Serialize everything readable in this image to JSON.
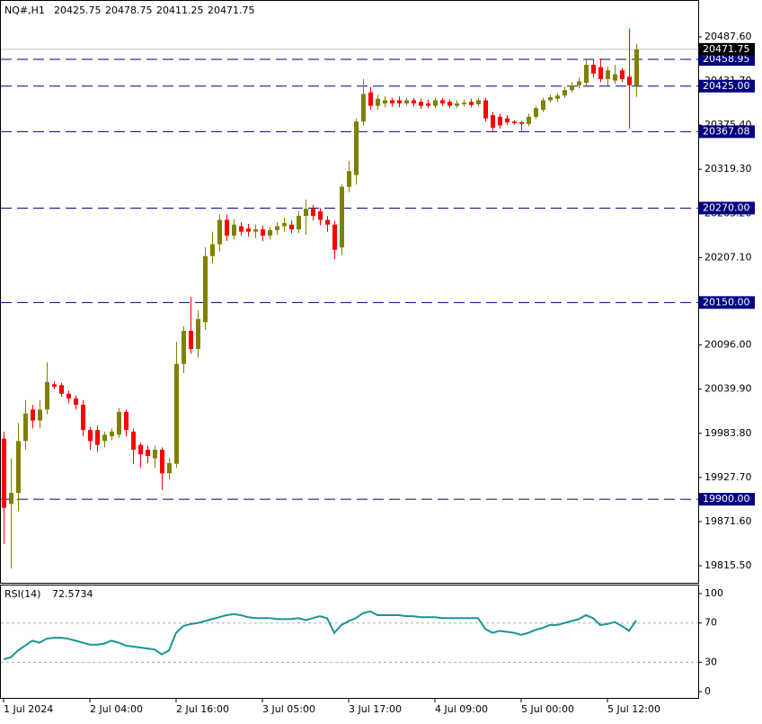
{
  "chart_data": [
    {
      "type": "candlestick",
      "title": "NQ#,H1",
      "categories": [
        "1 Jul 2024",
        null,
        null,
        null,
        null,
        null,
        null,
        null,
        null,
        null,
        null,
        null,
        "2 Jul 04:00",
        null,
        null,
        null,
        null,
        null,
        null,
        null,
        null,
        null,
        null,
        null,
        "2 Jul 16:00",
        null,
        null,
        null,
        null,
        null,
        null,
        null,
        null,
        null,
        null,
        null,
        "3 Jul 05:00",
        null,
        null,
        null,
        null,
        null,
        null,
        null,
        null,
        null,
        null,
        null,
        "3 Jul 17:00",
        null,
        null,
        null,
        null,
        null,
        null,
        null,
        null,
        null,
        null,
        null,
        "4 Jul 09:00",
        null,
        null,
        null,
        null,
        null,
        null,
        null,
        null,
        null,
        null,
        null,
        "5 Jul 00:00",
        null,
        null,
        null,
        null,
        null,
        null,
        null,
        null,
        null,
        null,
        null,
        "5 Jul 12:00",
        null,
        null,
        null,
        null
      ],
      "open": [
        19977,
        19894,
        19908,
        19974,
        20014,
        20000,
        20014,
        20046,
        20045,
        20034,
        20028,
        20020,
        19988,
        19988,
        19974,
        19980,
        19982,
        20011,
        19986,
        19969,
        19963,
        19952,
        19963,
        19933,
        19945,
        20072,
        20114,
        20091,
        20125,
        20209,
        20224,
        20255,
        20235,
        20247,
        20244,
        20240,
        20243,
        20235,
        20242,
        20247,
        20249,
        20243,
        20260,
        20269,
        20266,
        20255,
        20249,
        20220,
        20297,
        20312,
        20380,
        20417,
        20400,
        20403,
        20407,
        20407,
        20403,
        20407,
        20405,
        20403,
        20400,
        20407,
        20405,
        20400,
        20402,
        20405,
        20402,
        20407,
        20388,
        20386,
        20384,
        20380,
        20379,
        20377,
        20386,
        20395,
        20407,
        20409,
        20413,
        20420,
        20426,
        20429,
        20452,
        20449,
        20434,
        20432,
        20445,
        20437,
        20425.75
      ],
      "high": [
        19986,
        19952,
        19997,
        20026,
        20020,
        20026,
        20074,
        20050,
        20048,
        20038,
        20032,
        20026,
        19992,
        19994,
        19986,
        19990,
        20016,
        20014,
        19990,
        19972,
        19968,
        19968,
        19966,
        19952,
        20100,
        20120,
        20157,
        20140,
        20220,
        20240,
        20262,
        20262,
        20256,
        20252,
        20250,
        20249,
        20248,
        20246,
        20252,
        20258,
        20254,
        20266,
        20281,
        20274,
        20270,
        20260,
        20254,
        20300,
        20330,
        20384,
        20434,
        20424,
        20414,
        20412,
        20410,
        20412,
        20410,
        20410,
        20409,
        20408,
        20410,
        20410,
        20408,
        20407,
        20408,
        20409,
        20410,
        20410,
        20392,
        20390,
        20388,
        20382,
        20381,
        20390,
        20400,
        20410,
        20414,
        20416,
        20424,
        20430,
        20436,
        20459,
        20459,
        20460,
        20450,
        20452,
        20448,
        20498,
        20478.75
      ],
      "low": [
        19843,
        19812,
        19885,
        19963,
        19990,
        19990,
        20008,
        20040,
        20030,
        20022,
        20014,
        19980,
        19963,
        19960,
        19966,
        19975,
        19978,
        19980,
        19945,
        19940,
        19946,
        19940,
        19912,
        19925,
        19940,
        20060,
        20085,
        20080,
        20115,
        20200,
        20215,
        20228,
        20230,
        20235,
        20234,
        20232,
        20228,
        20230,
        20236,
        20240,
        20238,
        20238,
        20236,
        20254,
        20248,
        20240,
        20205,
        20210,
        20290,
        20300,
        20375,
        20395,
        20395,
        20398,
        20399,
        20398,
        20400,
        20399,
        20396,
        20397,
        20397,
        20400,
        20397,
        20397,
        20399,
        20398,
        20399,
        20380,
        20368,
        20371,
        20376,
        20376,
        20368,
        20374,
        20383,
        20392,
        20404,
        20405,
        20410,
        20417,
        20422,
        20425,
        20436,
        20430,
        20425,
        20428,
        20430,
        20371,
        20411.25
      ],
      "close": [
        19889,
        19908,
        19974,
        20009,
        20000,
        20014,
        20049,
        20043,
        20034,
        20028,
        20020,
        19988,
        19974,
        19969,
        19982,
        19986,
        20011,
        19988,
        19963,
        19957,
        19955,
        19963,
        19933,
        19946,
        20072,
        20114,
        20091,
        20129,
        20209,
        20224,
        20255,
        20235,
        20249,
        20240,
        20240,
        20243,
        20235,
        20242,
        20247,
        20251,
        20243,
        20260,
        20269,
        20260,
        20255,
        20249,
        20217,
        20297,
        20317,
        20380,
        20415,
        20400,
        20409,
        20407,
        20403,
        20403,
        20407,
        20403,
        20400,
        20400,
        20407,
        20403,
        20400,
        20403,
        20404,
        20401,
        20407,
        20384,
        20372,
        20375,
        20379,
        20378,
        20377,
        20386,
        20397,
        20407,
        20411,
        20413,
        20420,
        20426,
        20431,
        20452,
        20441,
        20434,
        20445,
        20440,
        20434,
        20426,
        20471.75
      ],
      "up_color": "#808000",
      "down_color": "#ff0000",
      "ylim": [
        19793.8,
        20533.3
      ],
      "yticks": [
        {
          "value": 20487.6,
          "label": "20487.60"
        },
        {
          "value": 20431.7,
          "label": "20431.70"
        },
        {
          "value": 20375.4,
          "label": "20375.40"
        },
        {
          "value": 20319.3,
          "label": "20319.30"
        },
        {
          "value": 20263.2,
          "label": "20263.20"
        },
        {
          "value": 20207.1,
          "label": "20207.10"
        },
        {
          "value": 20096,
          "label": "20096.00"
        },
        {
          "value": 20039.9,
          "label": "20039.90"
        },
        {
          "value": 19983.8,
          "label": "19983.80"
        },
        {
          "value": 19927.7,
          "label": "19927.70"
        },
        {
          "value": 19871.6,
          "label": "19871.60"
        },
        {
          "value": 19815.5,
          "label": "19815.50"
        }
      ],
      "levels": [
        {
          "value": 20458.95,
          "label": "20458.95"
        },
        {
          "value": 20425,
          "label": "20425.00"
        },
        {
          "value": 20367.08,
          "label": "20367.08"
        },
        {
          "value": 20270,
          "label": "20270.00"
        },
        {
          "value": 20150,
          "label": "20150.00"
        },
        {
          "value": 19900,
          "label": "19900.00"
        }
      ],
      "level_color": "#000080",
      "price_line_color": "#c0c0c0"
    },
    {
      "type": "line",
      "title": "RSI(14)",
      "values": [
        33,
        35,
        42,
        47,
        52,
        50,
        54,
        55,
        55,
        54,
        52,
        50,
        48,
        48,
        49,
        52,
        50,
        47,
        46,
        45,
        44,
        43,
        38,
        42,
        60,
        67,
        69,
        70,
        72,
        74,
        76,
        78,
        79,
        78,
        76,
        75,
        75,
        75,
        74,
        74,
        74,
        75,
        73,
        75,
        77,
        75,
        60,
        68,
        72,
        75,
        80,
        82,
        78,
        78,
        78,
        78,
        77,
        77,
        76,
        76,
        76,
        75,
        75,
        75,
        75,
        75,
        75,
        64,
        60,
        62,
        61,
        60,
        58,
        60,
        63,
        65,
        68,
        68,
        70,
        72,
        74,
        78,
        75,
        68,
        69,
        71,
        67,
        62,
        72.5734
      ],
      "color": "#1a9494",
      "ylim": [
        -6.4,
        108.3
      ],
      "yticks": [
        100,
        70,
        30,
        0
      ],
      "levels": [
        70,
        30
      ]
    }
  ]
}
